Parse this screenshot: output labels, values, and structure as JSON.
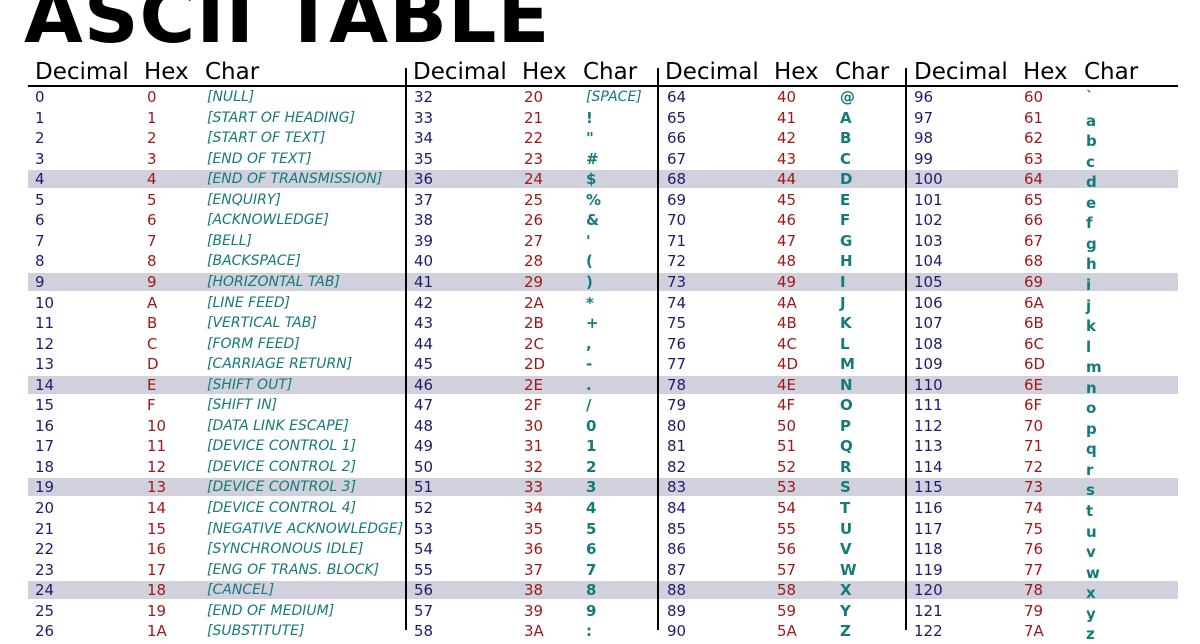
{
  "title": "ASCII TABLE",
  "header": {
    "decimal": "Decimal",
    "hex": "Hex",
    "char": "Char"
  },
  "colors": {
    "decimal": "#1c1c6e",
    "hex": "#a01818",
    "char": "#157a7a",
    "stripe": "#d1d1dd"
  },
  "columns": [
    {
      "rows": [
        {
          "dec": "0",
          "hex": "0",
          "char": "[NULL]"
        },
        {
          "dec": "1",
          "hex": "1",
          "char": "[START OF HEADING]"
        },
        {
          "dec": "2",
          "hex": "2",
          "char": "[START OF TEXT]"
        },
        {
          "dec": "3",
          "hex": "3",
          "char": "[END OF TEXT]"
        },
        {
          "dec": "4",
          "hex": "4",
          "char": "[END OF TRANSMISSION]"
        },
        {
          "dec": "5",
          "hex": "5",
          "char": "[ENQUIRY]"
        },
        {
          "dec": "6",
          "hex": "6",
          "char": "[ACKNOWLEDGE]"
        },
        {
          "dec": "7",
          "hex": "7",
          "char": "[BELL]"
        },
        {
          "dec": "8",
          "hex": "8",
          "char": "[BACKSPACE]"
        },
        {
          "dec": "9",
          "hex": "9",
          "char": "[HORIZONTAL TAB]"
        },
        {
          "dec": "10",
          "hex": "A",
          "char": "[LINE FEED]"
        },
        {
          "dec": "11",
          "hex": "B",
          "char": "[VERTICAL TAB]"
        },
        {
          "dec": "12",
          "hex": "C",
          "char": "[FORM FEED]"
        },
        {
          "dec": "13",
          "hex": "D",
          "char": "[CARRIAGE RETURN]"
        },
        {
          "dec": "14",
          "hex": "E",
          "char": "[SHIFT OUT]"
        },
        {
          "dec": "15",
          "hex": "F",
          "char": "[SHIFT IN]"
        },
        {
          "dec": "16",
          "hex": "10",
          "char": "[DATA LINK ESCAPE]"
        },
        {
          "dec": "17",
          "hex": "11",
          "char": "[DEVICE CONTROL 1]"
        },
        {
          "dec": "18",
          "hex": "12",
          "char": "[DEVICE CONTROL 2]"
        },
        {
          "dec": "19",
          "hex": "13",
          "char": "[DEVICE CONTROL 3]"
        },
        {
          "dec": "20",
          "hex": "14",
          "char": "[DEVICE CONTROL 4]"
        },
        {
          "dec": "21",
          "hex": "15",
          "char": "[NEGATIVE ACKNOWLEDGE]"
        },
        {
          "dec": "22",
          "hex": "16",
          "char": "[SYNCHRONOUS IDLE]"
        },
        {
          "dec": "23",
          "hex": "17",
          "char": "[ENG OF TRANS. BLOCK]"
        },
        {
          "dec": "24",
          "hex": "18",
          "char": "[CANCEL]"
        },
        {
          "dec": "25",
          "hex": "19",
          "char": "[END OF MEDIUM]"
        },
        {
          "dec": "26",
          "hex": "1A",
          "char": "[SUBSTITUTE]"
        }
      ]
    },
    {
      "rows": [
        {
          "dec": "32",
          "hex": "20",
          "char": "[SPACE]"
        },
        {
          "dec": "33",
          "hex": "21",
          "char": "!"
        },
        {
          "dec": "34",
          "hex": "22",
          "char": "\""
        },
        {
          "dec": "35",
          "hex": "23",
          "char": "#"
        },
        {
          "dec": "36",
          "hex": "24",
          "char": "$"
        },
        {
          "dec": "37",
          "hex": "25",
          "char": "%"
        },
        {
          "dec": "38",
          "hex": "26",
          "char": "&"
        },
        {
          "dec": "39",
          "hex": "27",
          "char": "'"
        },
        {
          "dec": "40",
          "hex": "28",
          "char": "("
        },
        {
          "dec": "41",
          "hex": "29",
          "char": ")"
        },
        {
          "dec": "42",
          "hex": "2A",
          "char": "*"
        },
        {
          "dec": "43",
          "hex": "2B",
          "char": "+"
        },
        {
          "dec": "44",
          "hex": "2C",
          "char": ","
        },
        {
          "dec": "45",
          "hex": "2D",
          "char": "-"
        },
        {
          "dec": "46",
          "hex": "2E",
          "char": "."
        },
        {
          "dec": "47",
          "hex": "2F",
          "char": "/"
        },
        {
          "dec": "48",
          "hex": "30",
          "char": "0"
        },
        {
          "dec": "49",
          "hex": "31",
          "char": "1"
        },
        {
          "dec": "50",
          "hex": "32",
          "char": "2"
        },
        {
          "dec": "51",
          "hex": "33",
          "char": "3"
        },
        {
          "dec": "52",
          "hex": "34",
          "char": "4"
        },
        {
          "dec": "53",
          "hex": "35",
          "char": "5"
        },
        {
          "dec": "54",
          "hex": "36",
          "char": "6"
        },
        {
          "dec": "55",
          "hex": "37",
          "char": "7"
        },
        {
          "dec": "56",
          "hex": "38",
          "char": "8"
        },
        {
          "dec": "57",
          "hex": "39",
          "char": "9"
        },
        {
          "dec": "58",
          "hex": "3A",
          "char": ":"
        }
      ]
    },
    {
      "rows": [
        {
          "dec": "64",
          "hex": "40",
          "char": "@"
        },
        {
          "dec": "65",
          "hex": "41",
          "char": "A"
        },
        {
          "dec": "66",
          "hex": "42",
          "char": "B"
        },
        {
          "dec": "67",
          "hex": "43",
          "char": "C"
        },
        {
          "dec": "68",
          "hex": "44",
          "char": "D"
        },
        {
          "dec": "69",
          "hex": "45",
          "char": "E"
        },
        {
          "dec": "70",
          "hex": "46",
          "char": "F"
        },
        {
          "dec": "71",
          "hex": "47",
          "char": "G"
        },
        {
          "dec": "72",
          "hex": "48",
          "char": "H"
        },
        {
          "dec": "73",
          "hex": "49",
          "char": "I"
        },
        {
          "dec": "74",
          "hex": "4A",
          "char": "J"
        },
        {
          "dec": "75",
          "hex": "4B",
          "char": "K"
        },
        {
          "dec": "76",
          "hex": "4C",
          "char": "L"
        },
        {
          "dec": "77",
          "hex": "4D",
          "char": "M"
        },
        {
          "dec": "78",
          "hex": "4E",
          "char": "N"
        },
        {
          "dec": "79",
          "hex": "4F",
          "char": "O"
        },
        {
          "dec": "80",
          "hex": "50",
          "char": "P"
        },
        {
          "dec": "81",
          "hex": "51",
          "char": "Q"
        },
        {
          "dec": "82",
          "hex": "52",
          "char": "R"
        },
        {
          "dec": "83",
          "hex": "53",
          "char": "S"
        },
        {
          "dec": "84",
          "hex": "54",
          "char": "T"
        },
        {
          "dec": "85",
          "hex": "55",
          "char": "U"
        },
        {
          "dec": "86",
          "hex": "56",
          "char": "V"
        },
        {
          "dec": "87",
          "hex": "57",
          "char": "W"
        },
        {
          "dec": "88",
          "hex": "58",
          "char": "X"
        },
        {
          "dec": "89",
          "hex": "59",
          "char": "Y"
        },
        {
          "dec": "90",
          "hex": "5A",
          "char": "Z"
        }
      ]
    },
    {
      "rows": [
        {
          "dec": "96",
          "hex": "60",
          "char": "`"
        },
        {
          "dec": "97",
          "hex": "61",
          "char": "a"
        },
        {
          "dec": "98",
          "hex": "62",
          "char": "b"
        },
        {
          "dec": "99",
          "hex": "63",
          "char": "c"
        },
        {
          "dec": "100",
          "hex": "64",
          "char": "d"
        },
        {
          "dec": "101",
          "hex": "65",
          "char": "e"
        },
        {
          "dec": "102",
          "hex": "66",
          "char": "f"
        },
        {
          "dec": "103",
          "hex": "67",
          "char": "g"
        },
        {
          "dec": "104",
          "hex": "68",
          "char": "h"
        },
        {
          "dec": "105",
          "hex": "69",
          "char": "i"
        },
        {
          "dec": "106",
          "hex": "6A",
          "char": "j"
        },
        {
          "dec": "107",
          "hex": "6B",
          "char": "k"
        },
        {
          "dec": "108",
          "hex": "6C",
          "char": "l"
        },
        {
          "dec": "109",
          "hex": "6D",
          "char": "m"
        },
        {
          "dec": "110",
          "hex": "6E",
          "char": "n"
        },
        {
          "dec": "111",
          "hex": "6F",
          "char": "o"
        },
        {
          "dec": "112",
          "hex": "70",
          "char": "p"
        },
        {
          "dec": "113",
          "hex": "71",
          "char": "q"
        },
        {
          "dec": "114",
          "hex": "72",
          "char": "r"
        },
        {
          "dec": "115",
          "hex": "73",
          "char": "s"
        },
        {
          "dec": "116",
          "hex": "74",
          "char": "t"
        },
        {
          "dec": "117",
          "hex": "75",
          "char": "u"
        },
        {
          "dec": "118",
          "hex": "76",
          "char": "v"
        },
        {
          "dec": "119",
          "hex": "77",
          "char": "w"
        },
        {
          "dec": "120",
          "hex": "78",
          "char": "x"
        },
        {
          "dec": "121",
          "hex": "79",
          "char": "y"
        },
        {
          "dec": "122",
          "hex": "7A",
          "char": "z"
        }
      ]
    }
  ]
}
